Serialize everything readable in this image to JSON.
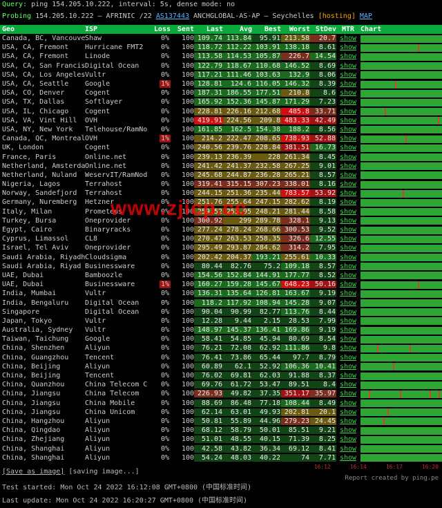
{
  "header": {
    "query_label": "Query:",
    "query": "ping 154.205.10.222, interval: 5s, dense mode: no",
    "probing_prefix": "Probing",
    "probing_ip": "154.205.10.222",
    "probing_rir": "— AFRINIC /22",
    "probing_asn": "AS137443",
    "probing_org": "ANCHGLOBAL-AS-AP — Seychelles",
    "hosting": "[hosting]",
    "map": "MAP"
  },
  "columns": {
    "geo": "Geo",
    "isp": "ISP",
    "loss": "Loss",
    "sent": "Sent",
    "last": "Last",
    "avg": "Avg",
    "best": "Best",
    "worst": "Worst",
    "stdev": "StDev",
    "mtr": "MTR",
    "chart": "Chart"
  },
  "mtr_label": "show",
  "palette": {
    "lv0": "#124516",
    "lv1": "#1a6b1e",
    "lv2": "#6a5a12",
    "lv3": "#7a2e1e",
    "lv4": "#a01313",
    "lv5": "#d01010",
    "txt": "#eaeaea"
  },
  "rows": [
    {
      "geo": "Canada, BC, Vancouver",
      "isp": "Shaw",
      "loss": "0%",
      "sent": "100",
      "last": [
        "109.74",
        1
      ],
      "avg": [
        "113.84",
        1
      ],
      "best": [
        "95.91",
        0
      ],
      "worst": [
        "213.58",
        2
      ],
      "st": [
        "20.7",
        3
      ],
      "spikes": []
    },
    {
      "geo": "USA, CA, Fremont",
      "isp": "Hurricane FMT2",
      "loss": "0%",
      "sent": "100",
      "last": [
        "118.72",
        1
      ],
      "avg": [
        "112.22",
        1
      ],
      "best": [
        "103.91",
        1
      ],
      "worst": [
        "138.18",
        1
      ],
      "st": [
        "8.61",
        0
      ],
      "spikes": [
        70
      ]
    },
    {
      "geo": "USA, CA, Fremont",
      "isp": "Linode",
      "loss": "0%",
      "sent": "100",
      "last": [
        "113.58",
        1
      ],
      "avg": [
        "114.53",
        1
      ],
      "best": [
        "105.87",
        1
      ],
      "worst": [
        "226.7",
        3
      ],
      "st": [
        "14.54",
        1
      ],
      "spikes": []
    },
    {
      "geo": "USA, CA, San Francisco",
      "isp": "Digital Ocean",
      "loss": "0%",
      "sent": "100",
      "last": [
        "122.79",
        1
      ],
      "avg": [
        "118.67",
        1
      ],
      "best": [
        "110.68",
        1
      ],
      "worst": [
        "146.52",
        1
      ],
      "st": [
        "8.69",
        0
      ],
      "spikes": []
    },
    {
      "geo": "USA, CA, Los Angeles",
      "isp": "Vultr",
      "loss": "0%",
      "sent": "100",
      "last": [
        "117.21",
        1
      ],
      "avg": [
        "111.46",
        1
      ],
      "best": [
        "103.63",
        1
      ],
      "worst": [
        "132.9",
        1
      ],
      "st": [
        "8.06",
        0
      ],
      "spikes": []
    },
    {
      "geo": "USA, CA, Seattle",
      "isp": "Google",
      "loss": "1%",
      "loss_hi": true,
      "sent": "100",
      "last": [
        "128.81",
        1
      ],
      "avg": [
        "124.6",
        1
      ],
      "best": [
        "116.05",
        1
      ],
      "worst": [
        "146.32",
        1
      ],
      "st": [
        "8.39",
        0
      ],
      "spikes": [
        42
      ]
    },
    {
      "geo": "USA, CO, Denver",
      "isp": "Cogent",
      "loss": "0%",
      "sent": "100",
      "last": [
        "187.31",
        1
      ],
      "avg": [
        "186.55",
        1
      ],
      "best": [
        "177.51",
        1
      ],
      "worst": [
        "210.8",
        2
      ],
      "st": [
        "8.6",
        0
      ],
      "spikes": []
    },
    {
      "geo": "USA, TX, Dallas",
      "isp": "Softlayer",
      "loss": "0%",
      "sent": "100",
      "last": [
        "165.92",
        1
      ],
      "avg": [
        "152.36",
        1
      ],
      "best": [
        "145.87",
        1
      ],
      "worst": [
        "171.29",
        1
      ],
      "st": [
        "7.23",
        0
      ],
      "spikes": []
    },
    {
      "geo": "USA, IL, Chicago",
      "isp": "Cogent",
      "loss": "0%",
      "sent": "100",
      "last": [
        "228.81",
        2
      ],
      "avg": [
        "226.16",
        2
      ],
      "best": [
        "212.68",
        2
      ],
      "worst": [
        "485.8",
        5
      ],
      "st": [
        "33.71",
        3
      ],
      "spikes": [
        30
      ]
    },
    {
      "geo": "USA, VA, Vint Hill",
      "isp": "OVH",
      "loss": "0%",
      "sent": "100",
      "last": [
        "419.91",
        5
      ],
      "avg": [
        "224.56",
        2
      ],
      "best": [
        "209.8",
        2
      ],
      "worst": [
        "483.33",
        5
      ],
      "st": [
        "42.49",
        4
      ],
      "spikes": [
        95
      ]
    },
    {
      "geo": "USA, NY, New York",
      "isp": "Telehouse/RamNode",
      "loss": "0%",
      "sent": "100",
      "last": [
        "161.85",
        1
      ],
      "avg": [
        "162.5",
        1
      ],
      "best": [
        "154.38",
        1
      ],
      "worst": [
        "188.2",
        1
      ],
      "st": [
        "8.56",
        0
      ],
      "spikes": []
    },
    {
      "geo": "Canada, QC, Montreal",
      "isp": "OVH",
      "loss": "1%",
      "loss_hi": true,
      "sent": "100",
      "last": [
        "214.2",
        2
      ],
      "avg": [
        "222.47",
        2
      ],
      "best": [
        "208.65",
        2
      ],
      "worst": [
        "738.93",
        5
      ],
      "st": [
        "52.88",
        4
      ],
      "spikes": [
        55
      ]
    },
    {
      "geo": "UK, London",
      "isp": "Cogent",
      "loss": "0%",
      "sent": "100",
      "last": [
        "240.56",
        2
      ],
      "avg": [
        "239.76",
        2
      ],
      "best": [
        "228.84",
        2
      ],
      "worst": [
        "381.51",
        4
      ],
      "st": [
        "16.73",
        1
      ],
      "spikes": []
    },
    {
      "geo": "France, Paris",
      "isp": "Online.net",
      "loss": "0%",
      "sent": "100",
      "last": [
        "239.13",
        2
      ],
      "avg": [
        "236.39",
        2
      ],
      "best": [
        "228",
        2
      ],
      "worst": [
        "261.34",
        2
      ],
      "st": [
        "8.45",
        0
      ],
      "spikes": []
    },
    {
      "geo": "Netherland, Amsterdam",
      "isp": "Online.net",
      "loss": "0%",
      "sent": "100",
      "last": [
        "241.42",
        2
      ],
      "avg": [
        "241.37",
        2
      ],
      "best": [
        "232.58",
        2
      ],
      "worst": [
        "267.25",
        2
      ],
      "st": [
        "9.01",
        0
      ],
      "spikes": []
    },
    {
      "geo": "Netherland, Nuland",
      "isp": "WeservIT/RamNode",
      "loss": "0%",
      "sent": "100",
      "last": [
        "245.68",
        2
      ],
      "avg": [
        "244.87",
        2
      ],
      "best": [
        "236.28",
        2
      ],
      "worst": [
        "265.21",
        2
      ],
      "st": [
        "8.57",
        0
      ],
      "spikes": []
    },
    {
      "geo": "Nigeria, Lagos",
      "isp": "Terrahost",
      "loss": "0%",
      "sent": "100",
      "last": [
        "319.41",
        3
      ],
      "avg": [
        "315.15",
        3
      ],
      "best": [
        "307.23",
        3
      ],
      "worst": [
        "338.01",
        3
      ],
      "st": [
        "8.16",
        0
      ],
      "spikes": []
    },
    {
      "geo": "Norway, Sandefjord",
      "isp": "Terrahost",
      "loss": "0%",
      "sent": "100",
      "last": [
        "244.15",
        2
      ],
      "avg": [
        "251.36",
        2
      ],
      "best": [
        "235.44",
        2
      ],
      "worst": [
        "783.57",
        5
      ],
      "st": [
        "53.92",
        4
      ],
      "spikes": [
        52
      ]
    },
    {
      "geo": "Germany, Nuremberg",
      "isp": "Hetzner",
      "loss": "0%",
      "sent": "100",
      "last": [
        "251.76",
        2
      ],
      "avg": [
        "255.64",
        2
      ],
      "best": [
        "247.15",
        2
      ],
      "worst": [
        "282.62",
        2
      ],
      "st": [
        "8.19",
        0
      ],
      "spikes": []
    },
    {
      "geo": "Italy, Milan",
      "isp": "Prometeus",
      "loss": "0%",
      "sent": "100",
      "last": [
        "259.52",
        2
      ],
      "avg": [
        "255.95",
        2
      ],
      "best": [
        "248.21",
        2
      ],
      "worst": [
        "281.44",
        2
      ],
      "st": [
        "8.58",
        0
      ],
      "spikes": []
    },
    {
      "geo": "Turkey, Bursa",
      "isp": "Oneprovider",
      "loss": "0%",
      "sent": "100",
      "last": [
        "300.92",
        3
      ],
      "avg": [
        "299",
        2
      ],
      "best": [
        "289.78",
        2
      ],
      "worst": [
        "328.1",
        3
      ],
      "st": [
        "9.13",
        0
      ],
      "spikes": []
    },
    {
      "geo": "Egypt, Cairo",
      "isp": "Binaryracks",
      "loss": "0%",
      "sent": "100",
      "last": [
        "277.24",
        2
      ],
      "avg": [
        "278.24",
        2
      ],
      "best": [
        "268.66",
        2
      ],
      "worst": [
        "300.53",
        3
      ],
      "st": [
        "9.52",
        0
      ],
      "spikes": []
    },
    {
      "geo": "Cyprus, Limassol",
      "isp": "CL8",
      "loss": "0%",
      "sent": "100",
      "last": [
        "270.47",
        2
      ],
      "avg": [
        "263.53",
        2
      ],
      "best": [
        "258.35",
        2
      ],
      "worst": [
        "326.6",
        3
      ],
      "st": [
        "12.55",
        1
      ],
      "spikes": []
    },
    {
      "geo": "Israel, Tel Aviv",
      "isp": "Oneprovider",
      "loss": "0%",
      "sent": "100",
      "last": [
        "295.49",
        2
      ],
      "avg": [
        "293.87",
        2
      ],
      "best": [
        "284.62",
        2
      ],
      "worst": [
        "314.2",
        3
      ],
      "st": [
        "7.95",
        0
      ],
      "spikes": []
    },
    {
      "geo": "Saudi Arabia, Riyadh",
      "isp": "Cloudsigma",
      "loss": "0%",
      "sent": "100",
      "last": [
        "202.42",
        2
      ],
      "avg": [
        "204.37",
        2
      ],
      "best": [
        "193.21",
        1
      ],
      "worst": [
        "255.61",
        2
      ],
      "st": [
        "10.33",
        1
      ],
      "spikes": []
    },
    {
      "geo": "Saudi Arabia, Riyad",
      "isp": "Businessware",
      "loss": "0%",
      "sent": "100",
      "last": [
        "80.44",
        0
      ],
      "avg": [
        "82.76",
        0
      ],
      "best": [
        "75.2",
        0
      ],
      "worst": [
        "109.18",
        1
      ],
      "st": [
        "8.57",
        0
      ],
      "spikes": []
    },
    {
      "geo": "UAE, Dubai",
      "isp": "Bamboozle",
      "loss": "0%",
      "sent": "100",
      "last": [
        "154.56",
        1
      ],
      "avg": [
        "152.84",
        1
      ],
      "best": [
        "144.91",
        1
      ],
      "worst": [
        "177.77",
        1
      ],
      "st": [
        "8.52",
        0
      ],
      "spikes": []
    },
    {
      "geo": "UAE, Dubai",
      "isp": "Businessware",
      "loss": "1%",
      "loss_hi": true,
      "sent": "100",
      "last": [
        "160.27",
        1
      ],
      "avg": [
        "159.28",
        1
      ],
      "best": [
        "145.67",
        1
      ],
      "worst": [
        "648.23",
        5
      ],
      "st": [
        "50.16",
        4
      ],
      "spikes": [
        70
      ]
    },
    {
      "geo": "India, Mumbai",
      "isp": "Vultr",
      "loss": "0%",
      "sent": "100",
      "last": [
        "136.31",
        1
      ],
      "avg": [
        "135.64",
        1
      ],
      "best": [
        "126.81",
        1
      ],
      "worst": [
        "163.67",
        1
      ],
      "st": [
        "9.19",
        0
      ],
      "spikes": []
    },
    {
      "geo": "India, Bengaluru",
      "isp": "Digital Ocean",
      "loss": "0%",
      "sent": "100",
      "last": [
        "118.2",
        1
      ],
      "avg": [
        "117.92",
        1
      ],
      "best": [
        "108.94",
        1
      ],
      "worst": [
        "145.28",
        1
      ],
      "st": [
        "9.07",
        0
      ],
      "spikes": []
    },
    {
      "geo": "Singapore",
      "isp": "Digital Ocean",
      "loss": "0%",
      "sent": "100",
      "last": [
        "90.04",
        0
      ],
      "avg": [
        "90.99",
        0
      ],
      "best": [
        "82.77",
        0
      ],
      "worst": [
        "113.76",
        1
      ],
      "st": [
        "8.44",
        0
      ],
      "spikes": []
    },
    {
      "geo": "Japan, Tokyo",
      "isp": "Vultr",
      "loss": "0%",
      "sent": "100",
      "last": [
        "12.28",
        0
      ],
      "avg": [
        "9.44",
        0
      ],
      "best": [
        "2.15",
        0
      ],
      "worst": [
        "28.53",
        0
      ],
      "st": [
        "7.99",
        0
      ],
      "spikes": []
    },
    {
      "geo": "Australia, Sydney",
      "isp": "Vultr",
      "loss": "0%",
      "sent": "100",
      "last": [
        "148.97",
        1
      ],
      "avg": [
        "145.37",
        1
      ],
      "best": [
        "136.41",
        1
      ],
      "worst": [
        "169.86",
        1
      ],
      "st": [
        "9.19",
        0
      ],
      "spikes": []
    },
    {
      "geo": "Taiwan, Taichung",
      "isp": "Google",
      "loss": "0%",
      "sent": "100",
      "last": [
        "58.41",
        0
      ],
      "avg": [
        "54.85",
        0
      ],
      "best": [
        "45.94",
        0
      ],
      "worst": [
        "80.69",
        0
      ],
      "st": [
        "8.54",
        0
      ],
      "spikes": []
    },
    {
      "geo": "China, Shenzhen",
      "isp": "Aliyun",
      "loss": "0%",
      "sent": "100",
      "last": [
        "76.21",
        0
      ],
      "avg": [
        "72.08",
        0
      ],
      "best": [
        "62.92",
        0
      ],
      "worst": [
        "111.86",
        1
      ],
      "st": [
        "9.8",
        0
      ],
      "spikes": [
        20,
        60
      ]
    },
    {
      "geo": "China, Guangzhou",
      "isp": "Tencent",
      "loss": "0%",
      "sent": "100",
      "last": [
        "76.41",
        0
      ],
      "avg": [
        "73.86",
        0
      ],
      "best": [
        "65.44",
        0
      ],
      "worst": [
        "97.7",
        0
      ],
      "st": [
        "8.79",
        0
      ],
      "spikes": []
    },
    {
      "geo": "China, Beijing",
      "isp": "Aliyun",
      "loss": "0%",
      "sent": "100",
      "last": [
        "60.89",
        0
      ],
      "avg": [
        "62.1",
        0
      ],
      "best": [
        "52.92",
        0
      ],
      "worst": [
        "106.36",
        1
      ],
      "st": [
        "10.41",
        1
      ],
      "spikes": [
        40
      ]
    },
    {
      "geo": "China, Beijing",
      "isp": "Tencent",
      "loss": "0%",
      "sent": "100",
      "last": [
        "76.02",
        0
      ],
      "avg": [
        "69.81",
        0
      ],
      "best": [
        "62.03",
        0
      ],
      "worst": [
        "91.88",
        0
      ],
      "st": [
        "8.37",
        0
      ],
      "spikes": []
    },
    {
      "geo": "China, Quanzhou",
      "isp": "China Telecom CN2",
      "loss": "0%",
      "sent": "100",
      "last": [
        "69.76",
        0
      ],
      "avg": [
        "61.72",
        0
      ],
      "best": [
        "53.47",
        0
      ],
      "worst": [
        "89.51",
        0
      ],
      "st": [
        "8.4",
        0
      ],
      "spikes": []
    },
    {
      "geo": "China, Jiangsu",
      "isp": "China Telecom",
      "loss": "0%",
      "sent": "100",
      "last": [
        "226.93",
        3
      ],
      "avg": [
        "49.82",
        0
      ],
      "best": [
        "37.35",
        0
      ],
      "worst": [
        "351.17",
        4
      ],
      "st": [
        "35.97",
        3
      ],
      "spikes": [
        10,
        48,
        85,
        96
      ]
    },
    {
      "geo": "China, Jiangsu",
      "isp": "China Mobile",
      "loss": "0%",
      "sent": "100",
      "last": [
        "88.69",
        0
      ],
      "avg": [
        "86.48",
        0
      ],
      "best": [
        "77.18",
        0
      ],
      "worst": [
        "108.44",
        1
      ],
      "st": [
        "8.49",
        0
      ],
      "spikes": []
    },
    {
      "geo": "China, Jiangsu",
      "isp": "China Unicom",
      "loss": "0%",
      "sent": "100",
      "last": [
        "62.14",
        0
      ],
      "avg": [
        "63.01",
        0
      ],
      "best": [
        "49.93",
        0
      ],
      "worst": [
        "202.81",
        2
      ],
      "st": [
        "20.1",
        2
      ],
      "spikes": [
        33
      ]
    },
    {
      "geo": "China, Hangzhou",
      "isp": "Aliyun",
      "loss": "0%",
      "sent": "100",
      "last": [
        "50.81",
        0
      ],
      "avg": [
        "55.89",
        0
      ],
      "best": [
        "44.96",
        0
      ],
      "worst": [
        "279.23",
        3
      ],
      "st": [
        "24.45",
        2
      ],
      "spikes": [
        28
      ]
    },
    {
      "geo": "China, Qingdao",
      "isp": "Aliyun",
      "loss": "0%",
      "sent": "100",
      "last": [
        "68.12",
        0
      ],
      "avg": [
        "58.79",
        0
      ],
      "best": [
        "50.01",
        0
      ],
      "worst": [
        "85.51",
        0
      ],
      "st": [
        "9.21",
        0
      ],
      "spikes": []
    },
    {
      "geo": "China, Zhejiang",
      "isp": "Aliyun",
      "loss": "0%",
      "sent": "100",
      "last": [
        "51.01",
        0
      ],
      "avg": [
        "48.55",
        0
      ],
      "best": [
        "40.15",
        0
      ],
      "worst": [
        "71.39",
        0
      ],
      "st": [
        "8.25",
        0
      ],
      "spikes": []
    },
    {
      "geo": "China, Shanghai",
      "isp": "Aliyun",
      "loss": "0%",
      "sent": "100",
      "last": [
        "42.58",
        0
      ],
      "avg": [
        "43.82",
        0
      ],
      "best": [
        "36.34",
        0
      ],
      "worst": [
        "69.12",
        0
      ],
      "st": [
        "8.41",
        0
      ],
      "spikes": []
    },
    {
      "geo": "China, Shanghai",
      "isp": "Aliyun",
      "loss": "0%",
      "sent": "100",
      "last": [
        "54.24",
        0
      ],
      "avg": [
        "48.03",
        0
      ],
      "best": [
        "40.22",
        0
      ],
      "worst": [
        "74",
        0
      ],
      "st": [
        "7.71",
        0
      ],
      "spikes": []
    }
  ],
  "footer": {
    "save": "[Save as image]",
    "saving": "[saving image...]",
    "report_by": "Report created by ping.pe",
    "test_started_label": "Test started:",
    "test_started": "Mon Oct 24 2022 16:12:08 GMT+0800 (中国标准时间)",
    "last_update_label": "Last update:",
    "last_update": "Mon Oct 24 2022 16:20:27 GMT+0800 (中国标准时间)",
    "axis": [
      "16:12",
      "16:14",
      "16:17",
      "16:20"
    ]
  },
  "watermark": "www.zjicp.cc"
}
